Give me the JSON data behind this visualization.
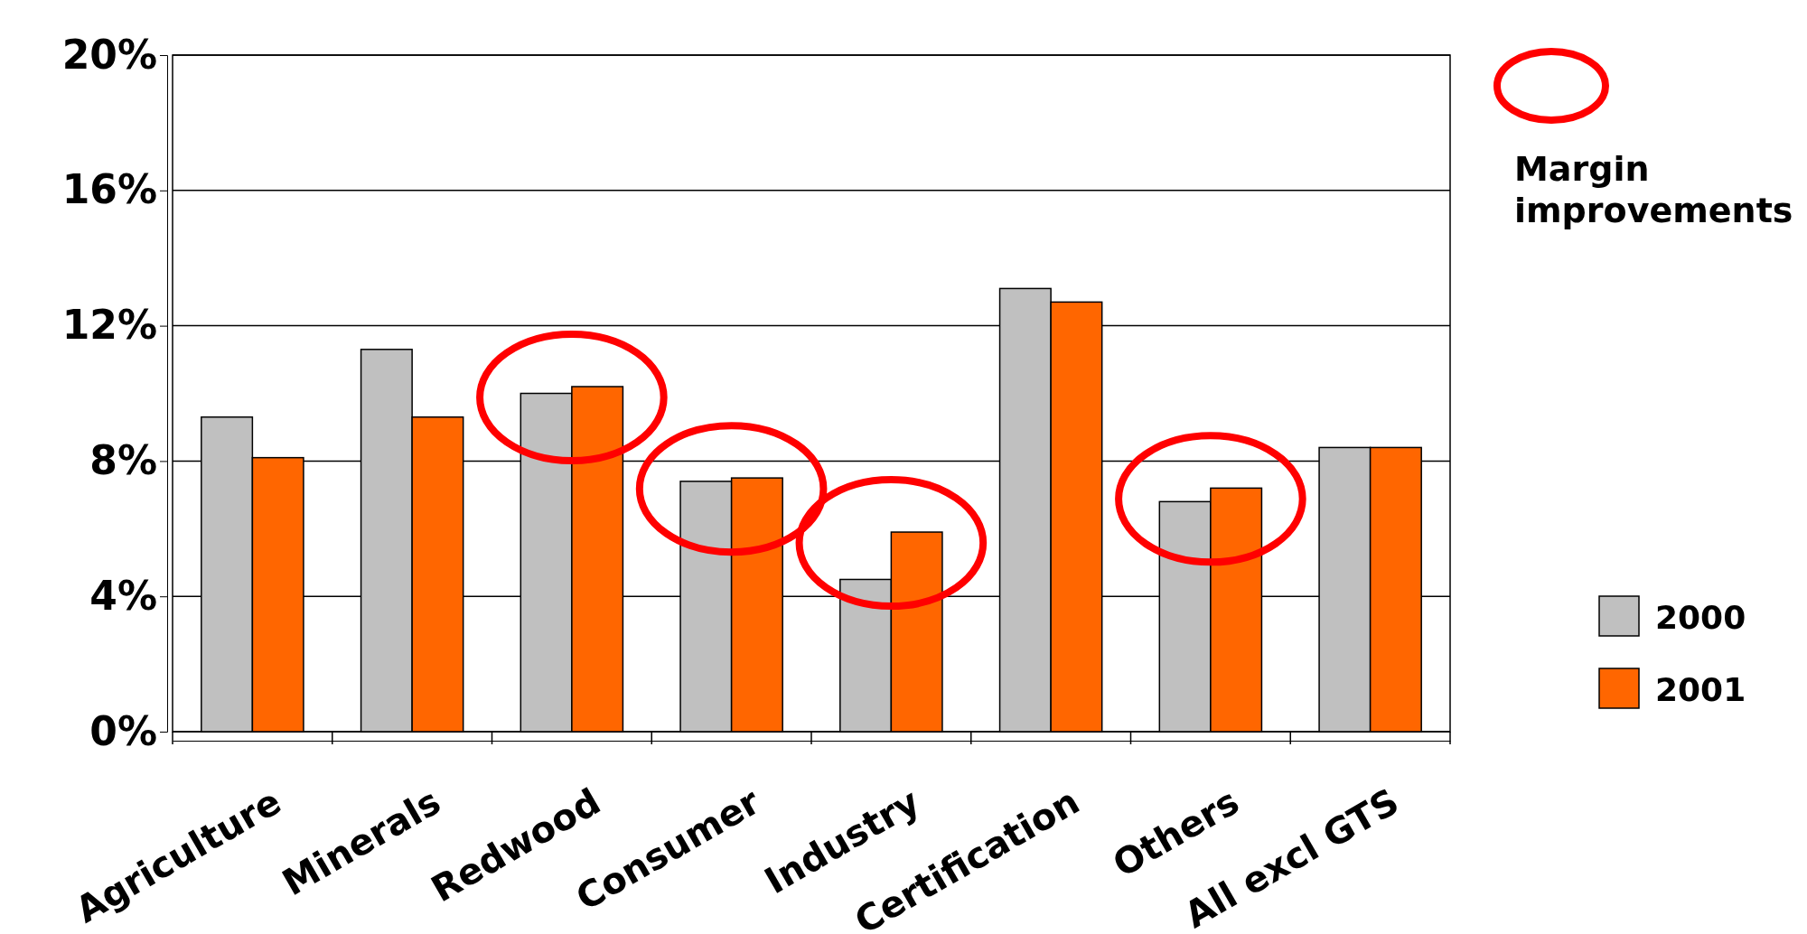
{
  "chart_data": {
    "type": "bar",
    "categories": [
      "Agriculture",
      "Minerals",
      "Redwood",
      "Consumer",
      "Industry",
      "Certification",
      "Others",
      "All excl GTS"
    ],
    "series": [
      {
        "name": "2000",
        "color": "#c0c0c0",
        "values": [
          9.3,
          11.3,
          10.0,
          7.4,
          4.5,
          13.1,
          6.8,
          8.4
        ]
      },
      {
        "name": "2001",
        "color": "#ff6600",
        "values": [
          8.1,
          9.3,
          10.2,
          7.5,
          5.9,
          12.7,
          7.2,
          8.4
        ]
      }
    ],
    "ylim": [
      0,
      20
    ],
    "yticks": [
      {
        "value": 0,
        "label": "0%"
      },
      {
        "value": 4,
        "label": "4%"
      },
      {
        "value": 8,
        "label": "8%"
      },
      {
        "value": 12,
        "label": "12%"
      },
      {
        "value": 16,
        "label": "16%"
      },
      {
        "value": 20,
        "label": "20%"
      }
    ],
    "grid": "y",
    "legend": "right",
    "annotations": [
      "Margin improvements"
    ]
  }
}
